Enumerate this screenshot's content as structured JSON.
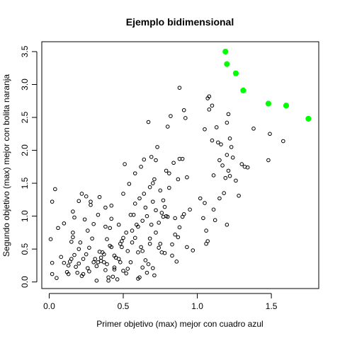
{
  "chart_data": {
    "type": "scatter",
    "title": "Ejemplo bidimensional",
    "xlabel": "Primer objetivo (max) mejor con cuadro azul",
    "ylabel": "Segundo objetivo (max) mejor con bolita naranja",
    "xlim": [
      -0.05,
      1.82
    ],
    "ylim": [
      -0.1,
      3.65
    ],
    "x_ticks": [
      0.0,
      0.5,
      1.0,
      1.5
    ],
    "x_tick_labels": [
      "0.0",
      "0.5",
      "1.0",
      "1.5"
    ],
    "y_ticks": [
      0.0,
      0.5,
      1.0,
      1.5,
      2.0,
      2.5,
      3.0,
      3.5
    ],
    "y_tick_labels": [
      "0.0",
      "0.5",
      "1.0",
      "1.5",
      "2.0",
      "2.5",
      "3.0",
      "3.5"
    ],
    "grid": false,
    "legend": "none",
    "point_color": "#000000",
    "highlight_color": "#00ff00",
    "series": [
      {
        "role": "dominated",
        "points": [
          [
            0.02,
            1.22
          ],
          [
            0.04,
            1.41
          ],
          [
            0.02,
            0.29
          ],
          [
            0.02,
            0.12
          ],
          [
            0.05,
            0.06
          ],
          [
            0.06,
            0.82
          ],
          [
            0.08,
            0.38
          ],
          [
            0.1,
            0.29
          ],
          [
            0.1,
            0.89
          ],
          [
            0.12,
            0.15
          ],
          [
            0.13,
            0.12
          ],
          [
            0.13,
            0.25
          ],
          [
            0.14,
            0.31
          ],
          [
            0.15,
            0.61
          ],
          [
            0.16,
            0.68
          ],
          [
            0.16,
            0.75
          ],
          [
            0.16,
            1.07
          ],
          [
            0.17,
            0.41
          ],
          [
            0.17,
            0.98
          ],
          [
            0.18,
            0.23
          ],
          [
            0.19,
            0.14
          ],
          [
            0.2,
            0.28
          ],
          [
            0.2,
            0.5
          ],
          [
            0.2,
            1.23
          ],
          [
            0.21,
            0.6
          ],
          [
            0.22,
            1.34
          ],
          [
            0.22,
            0.09
          ],
          [
            0.23,
            0.35
          ],
          [
            0.24,
            0.95
          ],
          [
            0.25,
            0.42
          ],
          [
            0.25,
            1.3
          ],
          [
            0.26,
            0.21
          ],
          [
            0.26,
            0.78
          ],
          [
            0.27,
            0.16
          ],
          [
            0.27,
            0.52
          ],
          [
            0.28,
            1.17
          ],
          [
            0.28,
            1.22
          ],
          [
            0.29,
            0.66
          ],
          [
            0.3,
            0.3
          ],
          [
            0.3,
            0.88
          ],
          [
            0.32,
            0.02
          ],
          [
            0.32,
            0.24
          ],
          [
            0.33,
            0.3
          ],
          [
            0.33,
            1.02
          ],
          [
            0.34,
            0.46
          ],
          [
            0.34,
            1.29
          ],
          [
            0.35,
            0.37
          ],
          [
            0.35,
            0.32
          ],
          [
            0.36,
            0.45
          ],
          [
            0.37,
            0.3
          ],
          [
            0.37,
            0.42
          ],
          [
            0.38,
            1.13
          ],
          [
            0.38,
            0.84
          ],
          [
            0.38,
            0.18
          ],
          [
            0.39,
            0.65
          ],
          [
            0.4,
            0.02
          ],
          [
            0.4,
            0.07
          ],
          [
            0.41,
            0.55
          ],
          [
            0.41,
            0.82
          ],
          [
            0.42,
            0.53
          ],
          [
            0.42,
            0.96
          ],
          [
            0.42,
            1.16
          ],
          [
            0.43,
            0.08
          ],
          [
            0.44,
            0.19
          ],
          [
            0.44,
            0.22
          ],
          [
            0.44,
            0.4
          ],
          [
            0.45,
            0.37
          ],
          [
            0.46,
            0.04
          ],
          [
            0.47,
            0.87
          ],
          [
            0.48,
            0.3
          ],
          [
            0.48,
            0.58
          ],
          [
            0.49,
            0.53
          ],
          [
            0.49,
            0.62
          ],
          [
            0.5,
            0.67
          ],
          [
            0.5,
            1.34
          ],
          [
            0.5,
            0.17
          ],
          [
            0.51,
            1.79
          ],
          [
            0.52,
            0.13
          ],
          [
            0.52,
            0.75
          ],
          [
            0.53,
            0.47
          ],
          [
            0.54,
            1.49
          ],
          [
            0.55,
            1.02
          ],
          [
            0.55,
            0.3
          ],
          [
            0.56,
            0.6
          ],
          [
            0.57,
            1.02
          ],
          [
            0.58,
            0.67
          ],
          [
            0.58,
            1.19
          ],
          [
            0.58,
            1.65
          ],
          [
            0.59,
            0.87
          ],
          [
            0.6,
            0.45
          ],
          [
            0.6,
            0.84
          ],
          [
            0.6,
            0.05
          ],
          [
            0.61,
            0.07
          ],
          [
            0.61,
            1.27
          ],
          [
            0.62,
            1.75
          ],
          [
            0.62,
            0.53
          ],
          [
            0.63,
            0.47
          ],
          [
            0.63,
            0.93
          ],
          [
            0.64,
            1.34
          ],
          [
            0.64,
            1.86
          ],
          [
            0.65,
            0.33
          ],
          [
            0.65,
            1.13
          ],
          [
            0.66,
            1.0
          ],
          [
            0.66,
            0.14
          ],
          [
            0.67,
            2.43
          ],
          [
            0.67,
            0.27
          ],
          [
            0.68,
            1.44
          ],
          [
            0.68,
            0.66
          ],
          [
            0.68,
            0.58
          ],
          [
            0.69,
            1.9
          ],
          [
            0.69,
            0.87
          ],
          [
            0.7,
            1.5
          ],
          [
            0.7,
            1.22
          ],
          [
            0.7,
            0.21
          ],
          [
            0.71,
            1.56
          ],
          [
            0.72,
            0.75
          ],
          [
            0.72,
            1.09
          ],
          [
            0.72,
            1.85
          ],
          [
            0.73,
            2.05
          ],
          [
            0.74,
            0.52
          ],
          [
            0.75,
            1.39
          ],
          [
            0.75,
            0.58
          ],
          [
            0.76,
            0.45
          ],
          [
            0.76,
            1.05
          ],
          [
            0.77,
            0.99
          ],
          [
            0.77,
            1.24
          ],
          [
            0.78,
            0.44
          ],
          [
            0.78,
            1.14
          ],
          [
            0.79,
            1.69
          ],
          [
            0.79,
            1.0
          ],
          [
            0.8,
            2.36
          ],
          [
            0.8,
            0.99
          ],
          [
            0.81,
            1.43
          ],
          [
            0.81,
            1.65
          ],
          [
            0.82,
            2.52
          ],
          [
            0.83,
            0.57
          ],
          [
            0.84,
            1.81
          ],
          [
            0.85,
            0.97
          ],
          [
            0.85,
            0.72
          ],
          [
            0.86,
            0.31
          ],
          [
            0.87,
            1.56
          ],
          [
            0.88,
            0.83
          ],
          [
            0.88,
            2.95
          ],
          [
            0.88,
            1.87
          ],
          [
            0.9,
            1.87
          ],
          [
            0.9,
            0.99
          ],
          [
            0.91,
            1.03
          ],
          [
            0.91,
            2.61
          ],
          [
            0.92,
            2.49
          ],
          [
            0.93,
            0.53
          ],
          [
            0.93,
            1.59
          ],
          [
            1.02,
            1.27
          ],
          [
            1.04,
            0.97
          ],
          [
            1.05,
            1.2
          ],
          [
            1.05,
            2.32
          ],
          [
            1.06,
            0.58
          ],
          [
            1.07,
            0.62
          ],
          [
            1.07,
            2.79
          ],
          [
            1.08,
            2.82
          ],
          [
            1.08,
            2.62
          ],
          [
            1.1,
            2.68
          ],
          [
            1.1,
            2.15
          ],
          [
            1.11,
            1.62
          ],
          [
            1.11,
            1.1
          ],
          [
            1.12,
            0.94
          ],
          [
            1.13,
            2.35
          ],
          [
            1.14,
            2.12
          ],
          [
            1.15,
            1.85
          ],
          [
            1.15,
            1.27
          ],
          [
            1.16,
            2.09
          ],
          [
            1.17,
            1.77
          ],
          [
            1.18,
            1.35
          ],
          [
            1.19,
            1.58
          ],
          [
            1.2,
            2.42
          ],
          [
            1.2,
            1.93
          ],
          [
            1.2,
            0.87
          ],
          [
            1.21,
            1.69
          ],
          [
            1.21,
            2.55
          ],
          [
            1.22,
            2.18
          ],
          [
            1.22,
            1.61
          ],
          [
            1.23,
            2.05
          ],
          [
            1.24,
            1.89
          ],
          [
            1.26,
            1.54
          ],
          [
            1.28,
            1.31
          ],
          [
            1.3,
            1.79
          ],
          [
            1.32,
            1.75
          ],
          [
            1.34,
            1.74
          ],
          [
            1.38,
            2.33
          ],
          [
            1.48,
            1.85
          ],
          [
            1.49,
            2.25
          ],
          [
            1.58,
            2.14
          ],
          [
            0.01,
            0.65
          ],
          [
            0.15,
            0.35
          ],
          [
            0.23,
            0.12
          ],
          [
            0.31,
            0.35
          ],
          [
            0.39,
            0.27
          ],
          [
            0.47,
            0.35
          ],
          [
            0.53,
            0.2
          ],
          [
            0.56,
            0.78
          ],
          [
            0.63,
            0.22
          ],
          [
            0.71,
            0.1
          ],
          [
            0.74,
            0.9
          ],
          [
            0.83,
            0.4
          ],
          [
            0.87,
            0.68
          ],
          [
            0.97,
            0.48
          ],
          [
            1.06,
            0.78
          ],
          [
            0.95,
            1.1
          ]
        ]
      },
      {
        "role": "pareto-front",
        "points": [
          [
            1.19,
            3.5
          ],
          [
            1.2,
            3.31
          ],
          [
            1.26,
            3.17
          ],
          [
            1.31,
            2.91
          ],
          [
            1.48,
            2.71
          ],
          [
            1.6,
            2.68
          ],
          [
            1.75,
            2.48
          ]
        ]
      }
    ]
  }
}
